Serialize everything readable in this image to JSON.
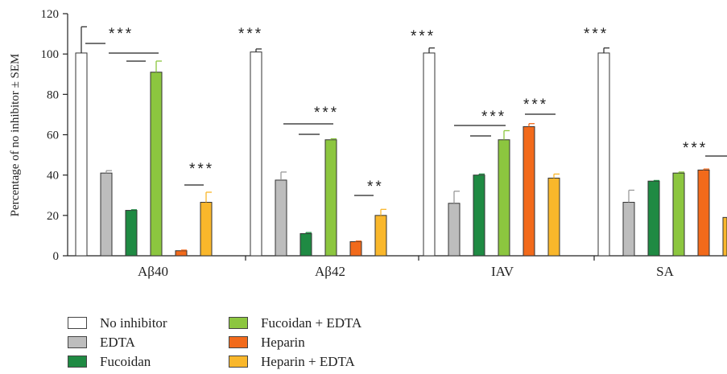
{
  "chart_data": {
    "type": "bar",
    "ylabel": "Percentage of no inhibitor ± SEM",
    "xlabel": "",
    "ylim": [
      0,
      120
    ],
    "yticks": [
      0,
      20,
      40,
      60,
      80,
      100,
      120
    ],
    "categories": [
      "Aβ40",
      "Aβ42",
      "IAV",
      "SA"
    ],
    "legend_position": "bottom",
    "series": [
      {
        "name": "No inhibitor",
        "color": "#ffffff",
        "values": [
          100.5,
          101,
          100.5,
          100.5
        ],
        "errors": [
          13,
          1.5,
          2.5,
          2.5
        ]
      },
      {
        "name": "EDTA",
        "color": "#bdbdbd",
        "values": [
          41,
          37.5,
          26,
          26.5
        ],
        "errors": [
          1.2,
          4,
          6,
          6
        ]
      },
      {
        "name": "Fucoidan",
        "color": "#1f8a43",
        "values": [
          22.5,
          11,
          40,
          37
        ],
        "errors": [
          0.3,
          0.5,
          0.5,
          0.3
        ]
      },
      {
        "name": "Fucoidan + EDTA",
        "color": "#8cc63f",
        "values": [
          91,
          57.5,
          57.5,
          41
        ],
        "errors": [
          5.5,
          0.5,
          4.5,
          0.5
        ]
      },
      {
        "name": "Heparin",
        "color": "#f26a1b",
        "values": [
          2.5,
          7,
          64,
          42.5
        ],
        "errors": [
          0.3,
          0.3,
          1.5,
          0.5
        ]
      },
      {
        "name": "Heparin + EDTA",
        "color": "#f9b72b",
        "values": [
          26.5,
          20,
          38.5,
          19
        ],
        "errors": [
          5,
          3,
          2,
          0.3
        ]
      }
    ],
    "annotations": {
      "over_no_inhibitor": [
        "***",
        "***",
        "***",
        "***"
      ],
      "Aβ40": [
        "***",
        "***"
      ],
      "Aβ42": [
        "***",
        "**"
      ],
      "IAV": [
        "***",
        "***"
      ],
      "SA": [
        "***"
      ]
    }
  }
}
